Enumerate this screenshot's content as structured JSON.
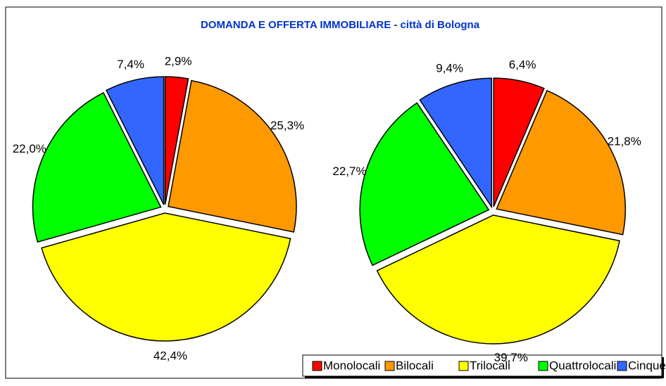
{
  "chart_data": [
    {
      "type": "pie",
      "title": "DOMANDA E OFFERTA IMMOBILIARE - città di Bologna",
      "categories": [
        "Monolocali",
        "Bilocali",
        "Trilocali",
        "Quattrolocali",
        "Cinquelocali"
      ],
      "colors": [
        "#ff0000",
        "#ff9900",
        "#ffff00",
        "#00ff00",
        "#3366ff"
      ],
      "values": [
        2.9,
        25.3,
        42.4,
        22.0,
        7.4
      ],
      "value_labels": [
        "2,9%",
        "25,3%",
        "42,4%",
        "22,0%",
        "7,4%"
      ],
      "legend": "bottom"
    },
    {
      "type": "pie",
      "values": [
        6.4,
        21.8,
        39.7,
        22.7,
        9.4
      ],
      "value_labels": [
        "6,4%",
        "21,8%",
        "39,7%",
        "22,7%",
        "9,4%"
      ]
    }
  ]
}
